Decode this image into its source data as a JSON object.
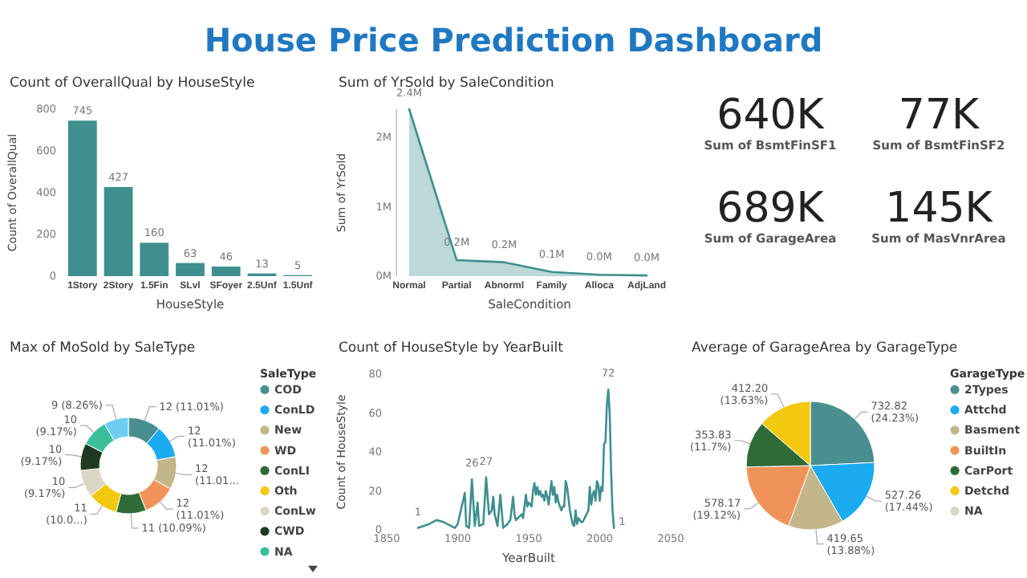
{
  "chart_data": [
    {
      "type": "other",
      "title": "House Price Prediction Dashboard"
    },
    {
      "type": "bar",
      "title": "Count of OverallQual by HouseStyle",
      "xlabel": "HouseStyle",
      "ylabel": "Count of OverallQual",
      "categories": [
        "1Story",
        "2Story",
        "1.5Fin",
        "SLvl",
        "SFoyer",
        "2.5Unf",
        "1.5Unf"
      ],
      "values": [
        745,
        427,
        160,
        63,
        46,
        13,
        5
      ],
      "color": "#3f8f8f",
      "ylim": [
        0,
        800
      ],
      "yticks": [
        0,
        200,
        400,
        600,
        800
      ],
      "data_labels": true
    },
    {
      "type": "area",
      "title": "Sum of YrSold by SaleCondition",
      "xlabel": "SaleCondition",
      "ylabel": "Sum of YrSold",
      "categories": [
        "Normal",
        "Partial",
        "Abnorml",
        "Family",
        "Alloca",
        "AdjLand"
      ],
      "values": [
        2.4,
        0.23,
        0.2,
        0.06,
        0.02,
        0.01
      ],
      "value_labels": [
        "2.4M",
        "0.2M",
        "0.2M",
        "0.1M",
        "0.0M",
        "0.0M"
      ],
      "color": "#3f8f8f",
      "ylim": [
        0,
        2.4
      ],
      "yticks": [
        {
          "value": 0,
          "label": "0M"
        },
        {
          "value": 1,
          "label": "1M"
        },
        {
          "value": 2,
          "label": "2M"
        }
      ]
    },
    {
      "type": "other",
      "annotations": [
        "640K",
        "Sum of BsmtFinSF1",
        "77K",
        "Sum of BsmtFinSF2",
        "689K",
        "Sum of GarageArea",
        "145K",
        "Sum of MasVnrArea"
      ]
    },
    {
      "type": "donut",
      "title": "Max of MoSold by SaleType",
      "legend_title": "SaleType",
      "legend": "right",
      "categories": [
        "COD",
        "ConLD",
        "New",
        "WD",
        "ConLI",
        "Oth",
        "ConLw",
        "CWD",
        "NA",
        null
      ],
      "values": [
        12,
        12,
        12,
        12,
        11,
        11,
        10,
        10,
        10,
        9
      ],
      "colors": [
        "#4a8f8f",
        "#1aabf0",
        "#c3b68a",
        "#f0935a",
        "#2f6b37",
        "#f2c811",
        "#d9d6c3",
        "#1f3a22",
        "#3bbf9b",
        "#6fcdf5"
      ],
      "value_labels": [
        "12 (11.01%)",
        "12 (11.01%)",
        "12 (11.01...",
        "12 (11.01%)",
        "11 (10.09%)",
        "11 (10.0...)",
        "10 (9.17%)",
        "10 (9.17%)",
        "10 (9.17%)",
        "9 (8.26%)"
      ]
    },
    {
      "type": "line",
      "title": "Count of HouseStyle by YearBuilt",
      "xlabel": "YearBuilt",
      "ylabel": "Count of HouseStyle",
      "color": "#3f8f8f",
      "xlim": [
        1850,
        2050
      ],
      "xticks": [
        1850,
        1900,
        1950,
        2000,
        2050
      ],
      "ylim": [
        0,
        80
      ],
      "yticks": [
        0,
        20,
        40,
        60,
        80
      ],
      "x": [
        1872,
        1880,
        1885,
        1890,
        1898,
        1900,
        1905,
        1906,
        1908,
        1910,
        1912,
        1914,
        1915,
        1918,
        1920,
        1922,
        1924,
        1925,
        1926,
        1928,
        1930,
        1932,
        1935,
        1937,
        1939,
        1940,
        1941,
        1945,
        1946,
        1948,
        1949,
        1950,
        1952,
        1953,
        1954,
        1955,
        1956,
        1957,
        1958,
        1959,
        1960,
        1961,
        1962,
        1963,
        1964,
        1965,
        1966,
        1967,
        1968,
        1969,
        1970,
        1971,
        1972,
        1973,
        1974,
        1975,
        1976,
        1977,
        1978,
        1979,
        1980,
        1981,
        1982,
        1983,
        1984,
        1985,
        1986,
        1987,
        1988,
        1990,
        1992,
        1993,
        1994,
        1995,
        1996,
        1997,
        1998,
        1999,
        2000,
        2001,
        2002,
        2003,
        2004,
        2005,
        2006,
        2007,
        2008,
        2009,
        2010
      ],
      "values": [
        1,
        3,
        5,
        4,
        1,
        3,
        19,
        2,
        1,
        26,
        2,
        14,
        2,
        3,
        27,
        8,
        10,
        17,
        8,
        2,
        18,
        1,
        3,
        5,
        17,
        8,
        5,
        8,
        6,
        18,
        12,
        14,
        12,
        20,
        24,
        18,
        22,
        18,
        20,
        17,
        18,
        15,
        20,
        17,
        13,
        19,
        25,
        18,
        22,
        14,
        18,
        14,
        12,
        10,
        12,
        12,
        25,
        22,
        16,
        10,
        6,
        3,
        2,
        10,
        3,
        6,
        5,
        4,
        4,
        7,
        10,
        22,
        13,
        18,
        20,
        15,
        25,
        23,
        15,
        22,
        20,
        44,
        45,
        64,
        72,
        60,
        30,
        10,
        1
      ],
      "value_labels": [
        "1",
        null,
        null,
        null,
        null,
        null,
        null,
        null,
        null,
        "26",
        null,
        null,
        null,
        null,
        "27",
        null,
        null,
        null,
        null,
        null,
        null,
        null,
        null,
        null,
        null,
        null,
        null,
        null,
        null,
        null,
        null,
        null,
        null,
        null,
        null,
        null,
        null,
        null,
        null,
        null,
        null,
        null,
        null,
        null,
        null,
        null,
        null,
        null,
        null,
        null,
        null,
        null,
        null,
        null,
        null,
        null,
        null,
        null,
        null,
        null,
        null,
        null,
        null,
        null,
        null,
        null,
        null,
        null,
        null,
        null,
        null,
        null,
        null,
        null,
        null,
        null,
        null,
        null,
        null,
        null,
        null,
        null,
        null,
        null,
        "72",
        null,
        null,
        null,
        "1"
      ]
    },
    {
      "type": "pie",
      "title": "Average of GarageArea by GarageType",
      "legend_title": "GarageType",
      "legend": "right",
      "categories": [
        "2Types",
        "Attchd",
        "Basment",
        "BuiltIn",
        "CarPort",
        "Detchd",
        "NA"
      ],
      "values": [
        732.82,
        527.26,
        419.65,
        578.17,
        353.83,
        412.2,
        0
      ],
      "colors": [
        "#4a8f8f",
        "#1aabf0",
        "#c3b68a",
        "#f0935a",
        "#2f6b37",
        "#f2c811",
        "#d9d6c3"
      ],
      "value_labels": [
        "732.82 (24.23%)",
        "527.26 (17.44%)",
        "419.65 (13.88%)",
        "578.17 (19.12%)",
        "353.83 (11.7%)",
        "412.20 (13.63%)",
        null
      ]
    }
  ]
}
